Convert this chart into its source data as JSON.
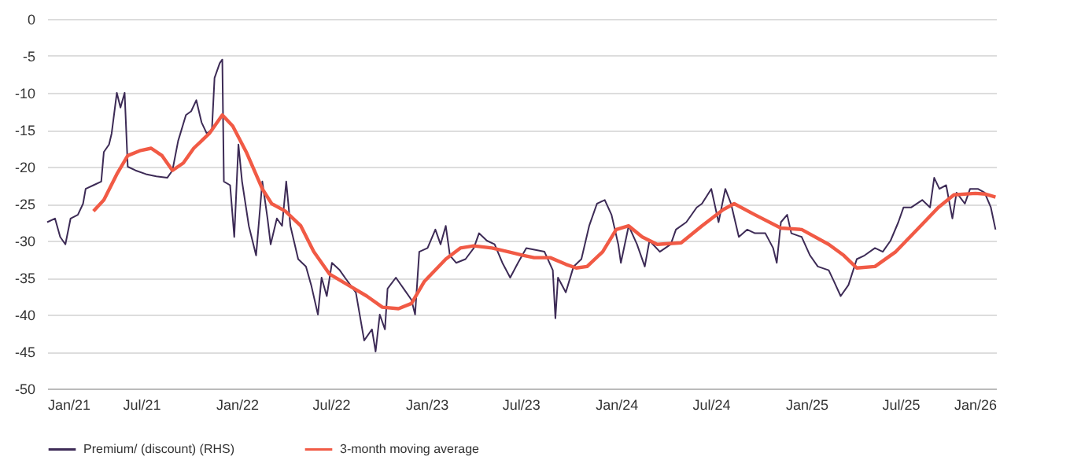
{
  "chart_data": {
    "type": "line",
    "legend": "bottom",
    "grid": "y",
    "line_style": "solid",
    "xlim": [
      "2021-01-01",
      "2026-01-01"
    ],
    "xticks": [
      {
        "value": "2021-01-01",
        "label": "Jan/21"
      },
      {
        "value": "2021-07-01",
        "label": "Jul/21"
      },
      {
        "value": "2022-01-01",
        "label": "Jan/22"
      },
      {
        "value": "2022-07-01",
        "label": "Jul/22"
      },
      {
        "value": "2023-01-01",
        "label": "Jan/23"
      },
      {
        "value": "2023-07-01",
        "label": "Jul/23"
      },
      {
        "value": "2024-01-01",
        "label": "Jan/24"
      },
      {
        "value": "2024-07-01",
        "label": "Jul/24"
      },
      {
        "value": "2025-01-01",
        "label": "Jan/25"
      },
      {
        "value": "2025-07-01",
        "label": "Jul/25"
      },
      {
        "value": "2026-01-01",
        "label": "Jan/26"
      }
    ],
    "ylim": [
      -50,
      0
    ],
    "yticks": [
      -50,
      -45,
      -40,
      -35,
      -30,
      -25,
      -20,
      -15,
      -10,
      -5,
      0
    ],
    "series": [
      {
        "name": "Premium/ (discount) (RHS)",
        "color": "#3d2b56",
        "x": [
          "2021-01-01",
          "2021-01-16",
          "2021-01-26",
          "2021-02-05",
          "2021-02-15",
          "2021-03-01",
          "2021-03-11",
          "2021-03-16",
          "2021-03-31",
          "2021-04-15",
          "2021-04-20",
          "2021-04-30",
          "2021-05-05",
          "2021-05-15",
          "2021-05-22",
          "2021-05-30",
          "2021-06-05",
          "2021-06-20",
          "2021-07-10",
          "2021-07-30",
          "2021-08-20",
          "2021-08-30",
          "2021-09-10",
          "2021-09-25",
          "2021-10-05",
          "2021-10-15",
          "2021-10-25",
          "2021-11-04",
          "2021-11-14",
          "2021-11-19",
          "2021-11-29",
          "2021-12-04",
          "2021-12-07",
          "2021-12-19",
          "2021-12-27",
          "2022-01-04",
          "2022-01-11",
          "2022-01-24",
          "2022-02-07",
          "2022-02-19",
          "2022-03-01",
          "2022-03-07",
          "2022-03-19",
          "2022-03-29",
          "2022-04-06",
          "2022-04-14",
          "2022-04-29",
          "2022-05-14",
          "2022-05-24",
          "2022-06-06",
          "2022-06-13",
          "2022-06-23",
          "2022-07-03",
          "2022-07-18",
          "2022-07-28",
          "2022-08-18",
          "2022-09-03",
          "2022-09-18",
          "2022-09-25",
          "2022-10-03",
          "2022-10-13",
          "2022-10-18",
          "2022-11-03",
          "2022-11-18",
          "2022-12-03",
          "2022-12-10",
          "2022-12-18",
          "2023-01-03",
          "2023-01-18",
          "2023-01-28",
          "2023-02-07",
          "2023-02-15",
          "2023-02-27",
          "2023-03-17",
          "2023-04-02",
          "2023-04-12",
          "2023-04-27",
          "2023-05-12",
          "2023-05-27",
          "2023-06-11",
          "2023-06-26",
          "2023-07-12",
          "2023-08-16",
          "2023-09-01",
          "2023-09-06",
          "2023-09-11",
          "2023-09-26",
          "2023-10-11",
          "2023-10-26",
          "2023-11-10",
          "2023-11-25",
          "2023-12-10",
          "2023-12-23",
          "2024-01-05",
          "2024-01-10",
          "2024-01-25",
          "2024-02-10",
          "2024-02-25",
          "2024-03-05",
          "2024-03-25",
          "2024-04-15",
          "2024-04-25",
          "2024-05-15",
          "2024-06-04",
          "2024-06-14",
          "2024-07-02",
          "2024-07-16",
          "2024-07-29",
          "2024-08-09",
          "2024-08-24",
          "2024-09-09",
          "2024-09-24",
          "2024-10-14",
          "2024-10-29",
          "2024-11-05",
          "2024-11-13",
          "2024-11-25",
          "2024-12-03",
          "2024-12-23",
          "2025-01-08",
          "2025-01-23",
          "2025-02-13",
          "2025-02-23",
          "2025-03-08",
          "2025-03-23",
          "2025-04-08",
          "2025-04-23",
          "2025-05-13",
          "2025-05-28",
          "2025-06-12",
          "2025-06-27",
          "2025-07-07",
          "2025-07-22",
          "2025-08-12",
          "2025-08-27",
          "2025-09-04",
          "2025-09-14",
          "2025-09-27",
          "2025-10-09",
          "2025-10-17",
          "2025-11-02",
          "2025-11-12",
          "2025-11-27",
          "2025-12-10",
          "2025-12-22",
          "2025-12-31"
        ],
        "values": [
          -27.5,
          -27,
          -29.5,
          -30.5,
          -27,
          -26.5,
          -25,
          -23,
          -22.5,
          -22,
          -18,
          -17,
          -15.5,
          -10,
          -12,
          -10,
          -20,
          -20.5,
          -21,
          -21.3,
          -21.5,
          -20.5,
          -16.5,
          -13,
          -12.5,
          -11,
          -14,
          -15.5,
          -15,
          -8,
          -6,
          -5.5,
          -22,
          -22.5,
          -29.5,
          -17,
          -22,
          -28,
          -32,
          -22,
          -27,
          -30.5,
          -27,
          -28,
          -22,
          -28,
          -32.5,
          -33.5,
          -36,
          -40,
          -35,
          -37.5,
          -33,
          -34,
          -35,
          -37,
          -43.5,
          -42,
          -45,
          -40,
          -42,
          -36.5,
          -35,
          -36.5,
          -38,
          -40,
          -31.5,
          -31,
          -28.5,
          -30.5,
          -28,
          -32,
          -33,
          -32.5,
          -31,
          -29,
          -30,
          -30.5,
          -33,
          -35,
          -33,
          -31,
          -31.5,
          -34,
          -40.5,
          -35,
          -37,
          -33.5,
          -32.5,
          -28,
          -25,
          -24.5,
          -26.5,
          -30.5,
          -33,
          -28,
          -30.5,
          -33.5,
          -30,
          -31.5,
          -30.5,
          -28.5,
          -27.5,
          -25.5,
          -25,
          -23,
          -27.5,
          -23,
          -25,
          -29.5,
          -28.5,
          -29,
          -29,
          -31,
          -33,
          -27.5,
          -26.5,
          -29,
          -29.5,
          -32,
          -33.5,
          -34,
          -35.5,
          -37.5,
          -36,
          -32.5,
          -32,
          -31,
          -31.5,
          -30,
          -27.5,
          -25.5,
          -25.5,
          -24.5,
          -25.5,
          -21.5,
          -23,
          -22.5,
          -27,
          -23.5,
          -25,
          -23,
          -23,
          -23.5,
          -25.5,
          -28.5
        ]
      },
      {
        "name": "3-month moving average",
        "color": "#f15a45",
        "x": [
          "2021-03-31",
          "2021-04-20",
          "2021-05-15",
          "2021-06-05",
          "2021-06-30",
          "2021-07-20",
          "2021-08-10",
          "2021-08-30",
          "2021-09-20",
          "2021-10-10",
          "2021-11-09",
          "2021-12-04",
          "2021-12-24",
          "2022-01-19",
          "2022-02-19",
          "2022-03-09",
          "2022-04-04",
          "2022-05-04",
          "2022-05-29",
          "2022-06-28",
          "2022-08-03",
          "2022-09-08",
          "2022-10-08",
          "2022-11-08",
          "2022-12-03",
          "2022-12-28",
          "2023-02-07",
          "2023-03-07",
          "2023-04-02",
          "2023-05-07",
          "2023-06-07",
          "2023-07-07",
          "2023-07-27",
          "2023-08-27",
          "2023-09-26",
          "2023-10-16",
          "2023-11-06",
          "2023-12-06",
          "2024-01-01",
          "2024-01-25",
          "2024-02-20",
          "2024-03-20",
          "2024-05-05",
          "2024-06-14",
          "2024-07-25",
          "2024-08-15",
          "2024-09-24",
          "2024-11-13",
          "2024-12-23",
          "2025-02-13",
          "2025-03-14",
          "2025-04-08",
          "2025-05-13",
          "2025-06-22",
          "2025-08-02",
          "2025-09-12",
          "2025-10-12",
          "2025-11-22",
          "2025-12-12",
          "2025-12-31"
        ],
        "values": [
          -26,
          -24.5,
          -21,
          -18.5,
          -17.8,
          -17.5,
          -18.5,
          -20.5,
          -19.5,
          -17.5,
          -15.5,
          -13,
          -14.5,
          -18,
          -23,
          -25,
          -26,
          -28,
          -31.5,
          -34.5,
          -36,
          -37.5,
          -39,
          -39.2,
          -38.5,
          -35.5,
          -32.5,
          -31,
          -30.7,
          -31,
          -31.5,
          -32,
          -32.3,
          -32.3,
          -33.2,
          -33.7,
          -33.5,
          -31.5,
          -28.5,
          -28,
          -29.5,
          -30.5,
          -30.3,
          -28,
          -25.8,
          -25,
          -26.5,
          -28.3,
          -28.5,
          -30.5,
          -32,
          -33.7,
          -33.5,
          -31.5,
          -28.5,
          -25.5,
          -23.8,
          -23.6,
          -23.7,
          -24.1
        ]
      }
    ]
  }
}
